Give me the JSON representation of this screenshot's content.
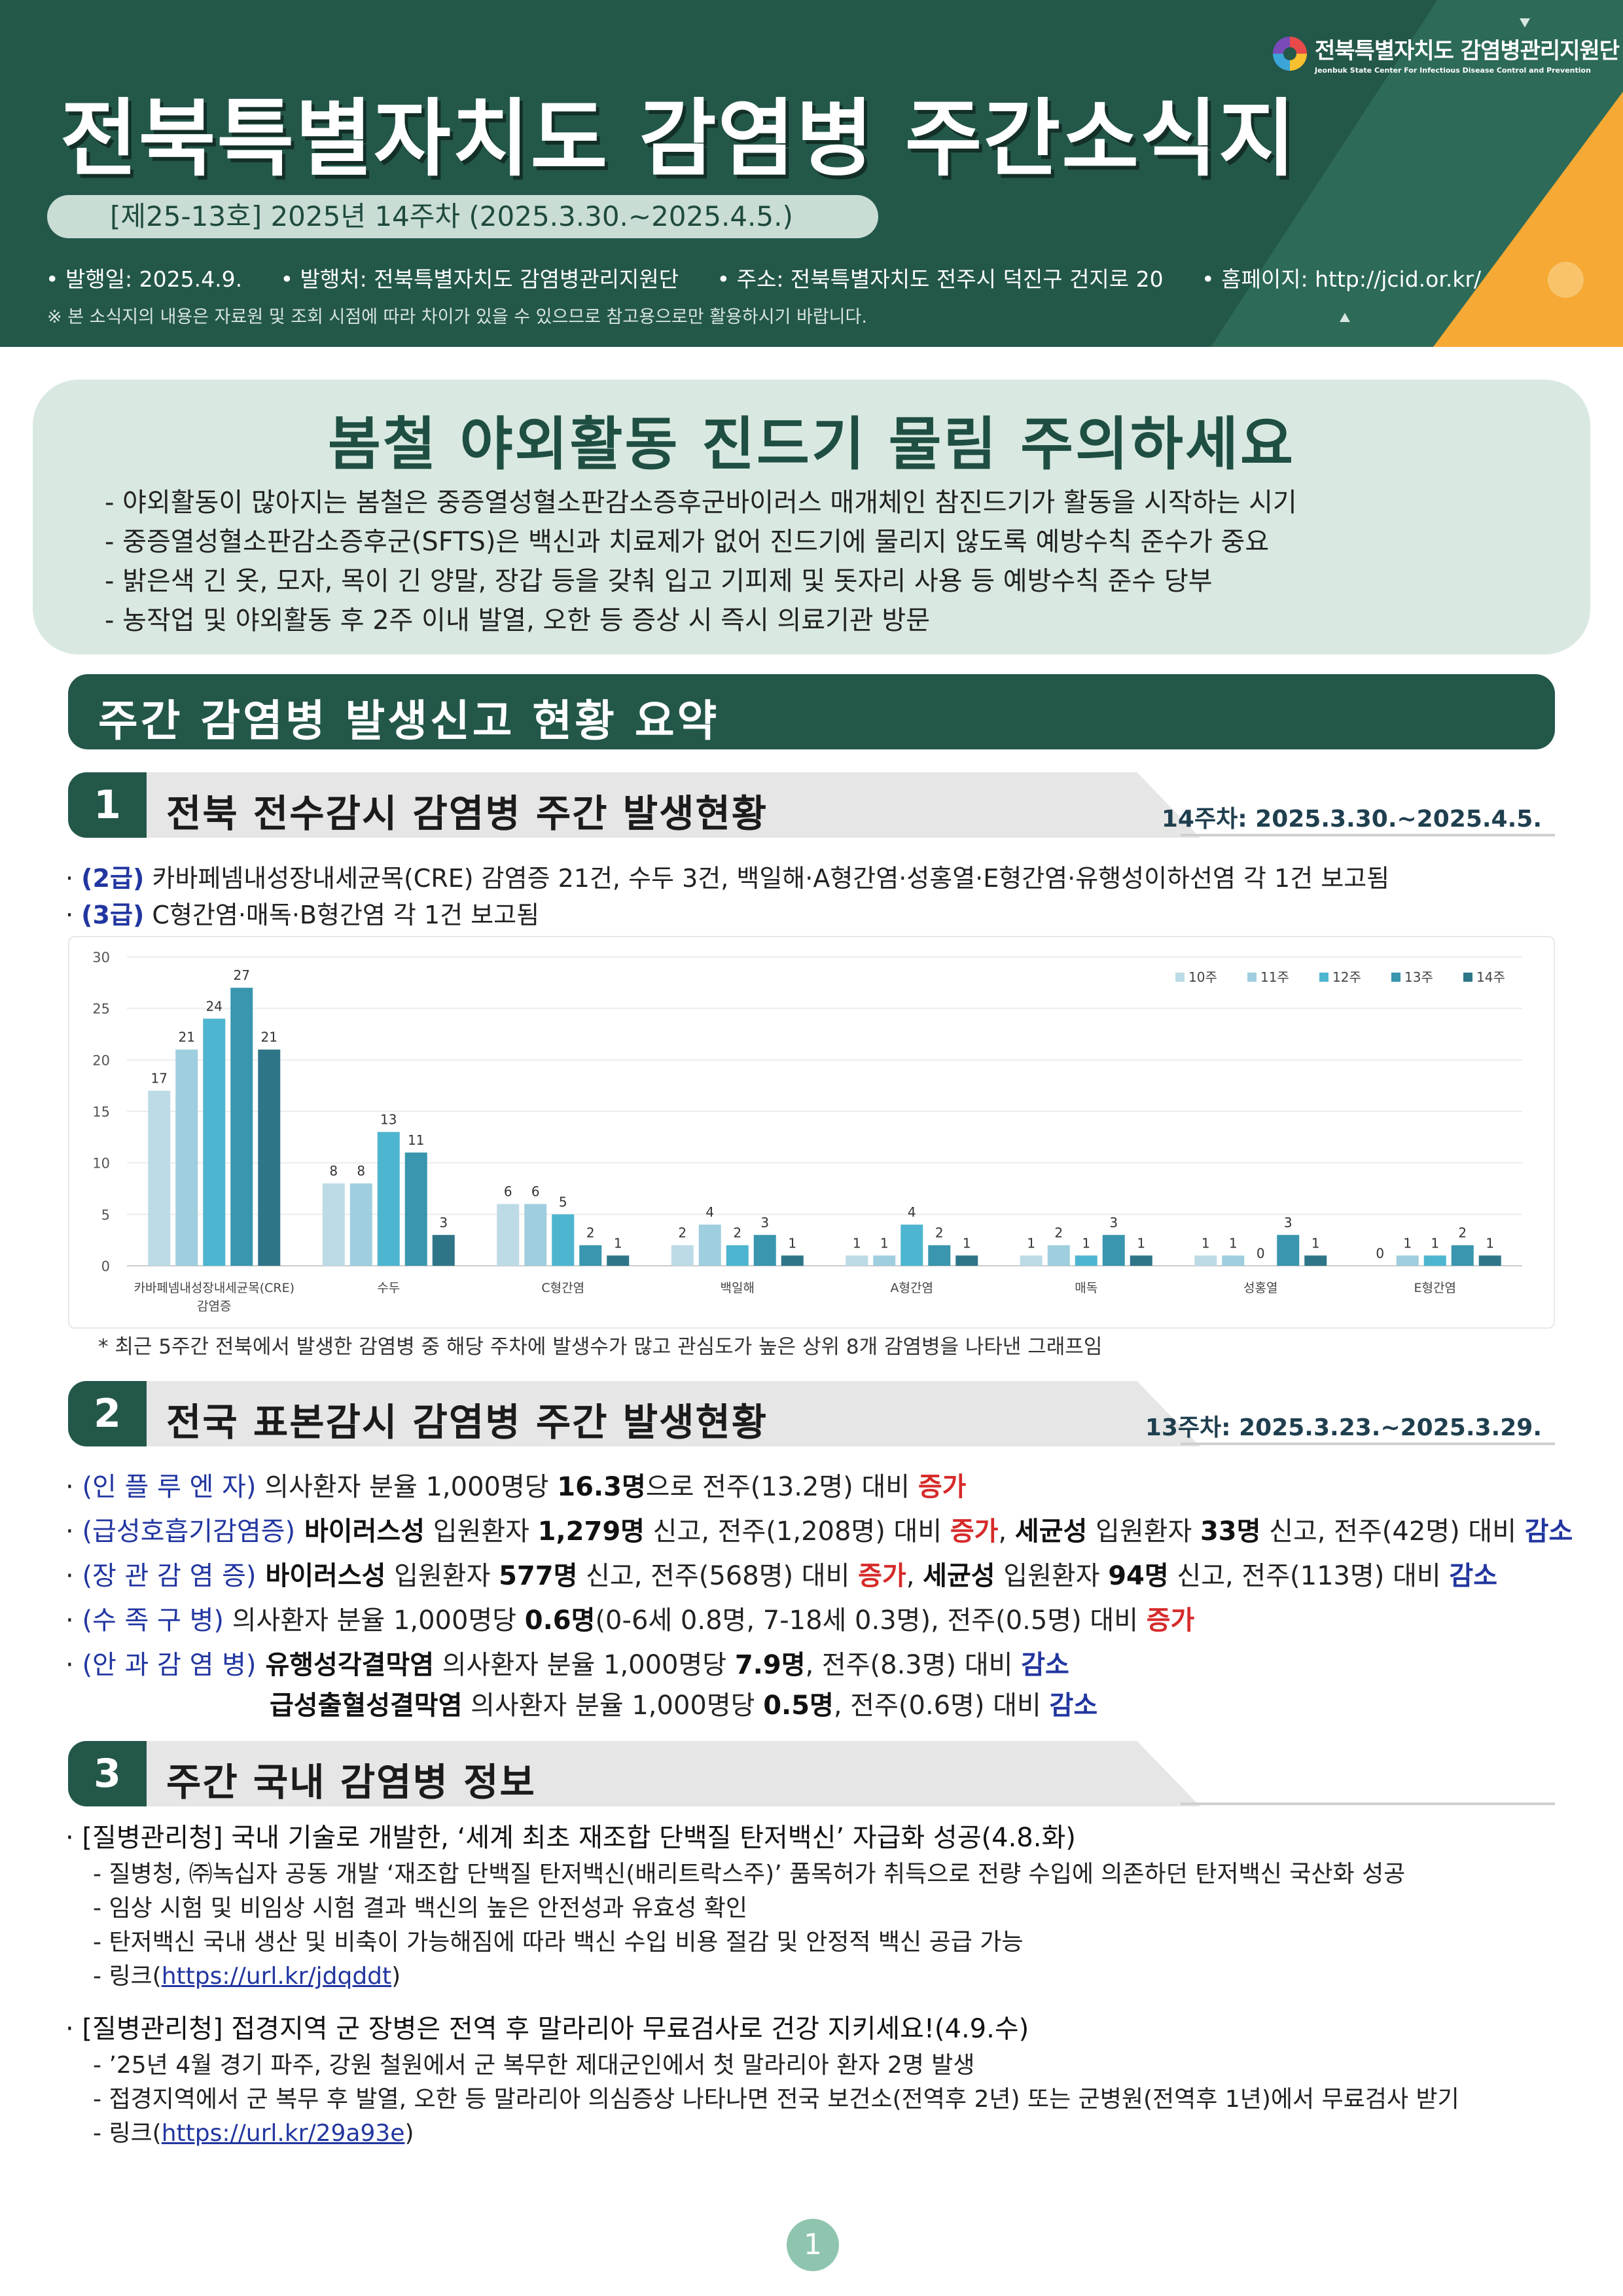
{
  "header": {
    "logo_kr": "전북특별자치도 감염병관리지원단",
    "logo_en": "Jeonbuk State Center For Infectious Disease Control and Prevention",
    "title": "전북특별자치도 감염병 주간소식지",
    "issue": "[제25-13호] 2025년 14주차 (2025.3.30.~2025.4.5.)",
    "pub_date": "• 발행일: 2025.4.9.",
    "publisher": "• 발행처: 전북특별자치도 감염병관리지원단",
    "address": "• 주소: 전북특별자치도 전주시 덕진구 건지로 20",
    "homepage": "• 홈페이지: http://jcid.or.kr/",
    "disclaimer": "※ 본 소식지의 내용은 자료원 및 조회 시점에 따라 차이가 있을 수 있으므로 참고용으로만 활용하시기 바랍니다."
  },
  "alert": {
    "title": "봄철 야외활동 진드기 물림 주의하세요",
    "items": [
      "야외활동이 많아지는 봄철은 중증열성혈소판감소증후군바이러스 매개체인 참진드기가 활동을 시작하는 시기",
      "중증열성혈소판감소증후군(SFTS)은 백신과 치료제가 없어 진드기에 물리지 않도록 예방수칙 준수가 중요",
      "밝은색 긴 옷, 모자, 목이 긴 양말, 장갑 등을 갖춰 입고 기피제 및 돗자리 사용 등 예방수칙 준수 당부",
      "농작업 및 야외활동 후 2주 이내 발열, 오한 등 증상 시 즉시 의료기관 방문"
    ]
  },
  "summary_title": "주간 감염병 발생신고 현황 요약",
  "section1": {
    "num": "1",
    "title": "전북 전수감시 감염병 주간 발생현황",
    "date": "14주차: 2025.3.30.~2025.4.5.",
    "line1_grade": "(2급)",
    "line1_text": "카바페넴내성장내세균목(CRE) 감염증 21건, 수두 3건, 백일해·A형간염·성홍열·E형간염·유행성이하선염 각 1건 보고됨",
    "line2_grade": "(3급)",
    "line2_text": "C형간염·매독·B형간염 각 1건 보고됨",
    "note": "* 최근 5주간 전북에서 발생한 감염병 중 해당 주차에 발생수가 많고 관심도가 높은 상위 8개 감염병을 나타낸 그래프임"
  },
  "chart_data": {
    "type": "bar",
    "categories": [
      "카바페넴내성장내세균목(CRE) 감염증",
      "수두",
      "C형간염",
      "백일해",
      "A형간염",
      "매독",
      "성홍열",
      "E형간염"
    ],
    "series": [
      {
        "name": "10주",
        "color": "#bcdbe6",
        "values": [
          17,
          8,
          6,
          2,
          1,
          1,
          1,
          0
        ]
      },
      {
        "name": "11주",
        "color": "#9fcede",
        "values": [
          21,
          8,
          6,
          4,
          1,
          2,
          1,
          1
        ]
      },
      {
        "name": "12주",
        "color": "#4db5cf",
        "values": [
          24,
          13,
          5,
          2,
          4,
          1,
          0,
          1
        ]
      },
      {
        "name": "13주",
        "color": "#3996ae",
        "values": [
          27,
          11,
          2,
          3,
          2,
          3,
          3,
          2
        ]
      },
      {
        "name": "14주",
        "color": "#2f7588",
        "values": [
          21,
          3,
          1,
          1,
          1,
          1,
          1,
          1
        ]
      }
    ],
    "ylim": [
      0,
      30
    ],
    "yticks": [
      0,
      5,
      10,
      15,
      20,
      25,
      30
    ],
    "grid": true,
    "legend": "top-right"
  },
  "section2": {
    "num": "2",
    "title": "전국 표본감시 감염병 주간 발생현황",
    "date": "13주차: 2025.3.23.~2025.3.29.",
    "r1": {
      "cat": "(인 플 루 엔 자)",
      "t1": " 의사환자 분율 1,000명당 ",
      "b1": "16.3명",
      "t2": "으로 전주(13.2명) 대비 ",
      "trend": "증가"
    },
    "r2": {
      "cat": "(급성호흡기감염증)",
      "b1": " 바이러스성",
      "t1": " 입원환자 ",
      "b2": "1,279명",
      "t2": " 신고, 전주(1,208명) 대비 ",
      "trend1": "증가",
      "t3": ", ",
      "b3": "세균성",
      "t4": " 입원환자 ",
      "b4": "33명",
      "t5": " 신고, 전주(42명) 대비 ",
      "trend2": "감소"
    },
    "r3": {
      "cat": "(장 관 감 염 증)",
      "b1": " 바이러스성",
      "t1": " 입원환자 ",
      "b2": "577명",
      "t2": " 신고, 전주(568명) 대비 ",
      "trend1": "증가",
      "t3": ", ",
      "b3": "세균성",
      "t4": " 입원환자 ",
      "b4": "94명",
      "t5": " 신고, 전주(113명) 대비 ",
      "trend2": "감소"
    },
    "r4": {
      "cat": "(수 족 구 병)",
      "t1": " 의사환자 분율 1,000명당 ",
      "b1": "0.6명",
      "t2": "(0-6세 0.8명, 7-18세 0.3명), 전주(0.5명) 대비 ",
      "trend": "증가"
    },
    "r5": {
      "cat": "(안 과 감 염 병)",
      "b1": " 유행성각결막염",
      "t1": " 의사환자 분율 1,000명당 ",
      "b2": "7.9명",
      "t2": ", 전주(8.3명) 대비 ",
      "trend": "감소"
    },
    "r6": {
      "b1": "급성출혈성결막염",
      "t1": " 의사환자 분율 1,000명당 ",
      "b2": "0.5명",
      "t2": ", 전주(0.6명) 대비 ",
      "trend": "감소"
    }
  },
  "section3": {
    "num": "3",
    "title": "주간 국내 감염병 정보",
    "news1": {
      "head": "·  [질병관리청] 국내 기술로 개발한, ‘세계 최초 재조합 단백질 탄저백신’ 자급화 성공(4.8.화)",
      "subs": [
        "질병청, ㈜녹십자 공동 개발 ‘재조합 단백질 탄저백신(배리트락스주)’ 품목허가 취득으로 전량 수입에 의존하던 탄저백신 국산화 성공",
        "임상 시험 및 비임상 시험 결과 백신의 높은 안전성과 유효성 확인",
        "탄저백신 국내 생산 및 비축이 가능해짐에 따라 백신 수입 비용 절감 및 안정적 백신 공급 가능"
      ],
      "link_prefix": "링크(",
      "link": "https://url.kr/jdqddt",
      "link_suffix": ")"
    },
    "news2": {
      "head": "·  [질병관리청] 접경지역 군 장병은 전역 후 말라리아 무료검사로 건강 지키세요!(4.9.수)",
      "subs": [
        "’25년 4월 경기 파주, 강원 철원에서 군 복무한 제대군인에서 첫 말라리아 환자 2명 발생",
        "접경지역에서 군 복무 후 발열, 오한 등 말라리아 의심증상 나타나면 전국 보건소(전역후 2년) 또는 군병원(전역후 1년)에서 무료검사 받기"
      ],
      "link_prefix": "링크(",
      "link": "https://url.kr/29a93e",
      "link_suffix": ")"
    }
  },
  "page_number": "1"
}
